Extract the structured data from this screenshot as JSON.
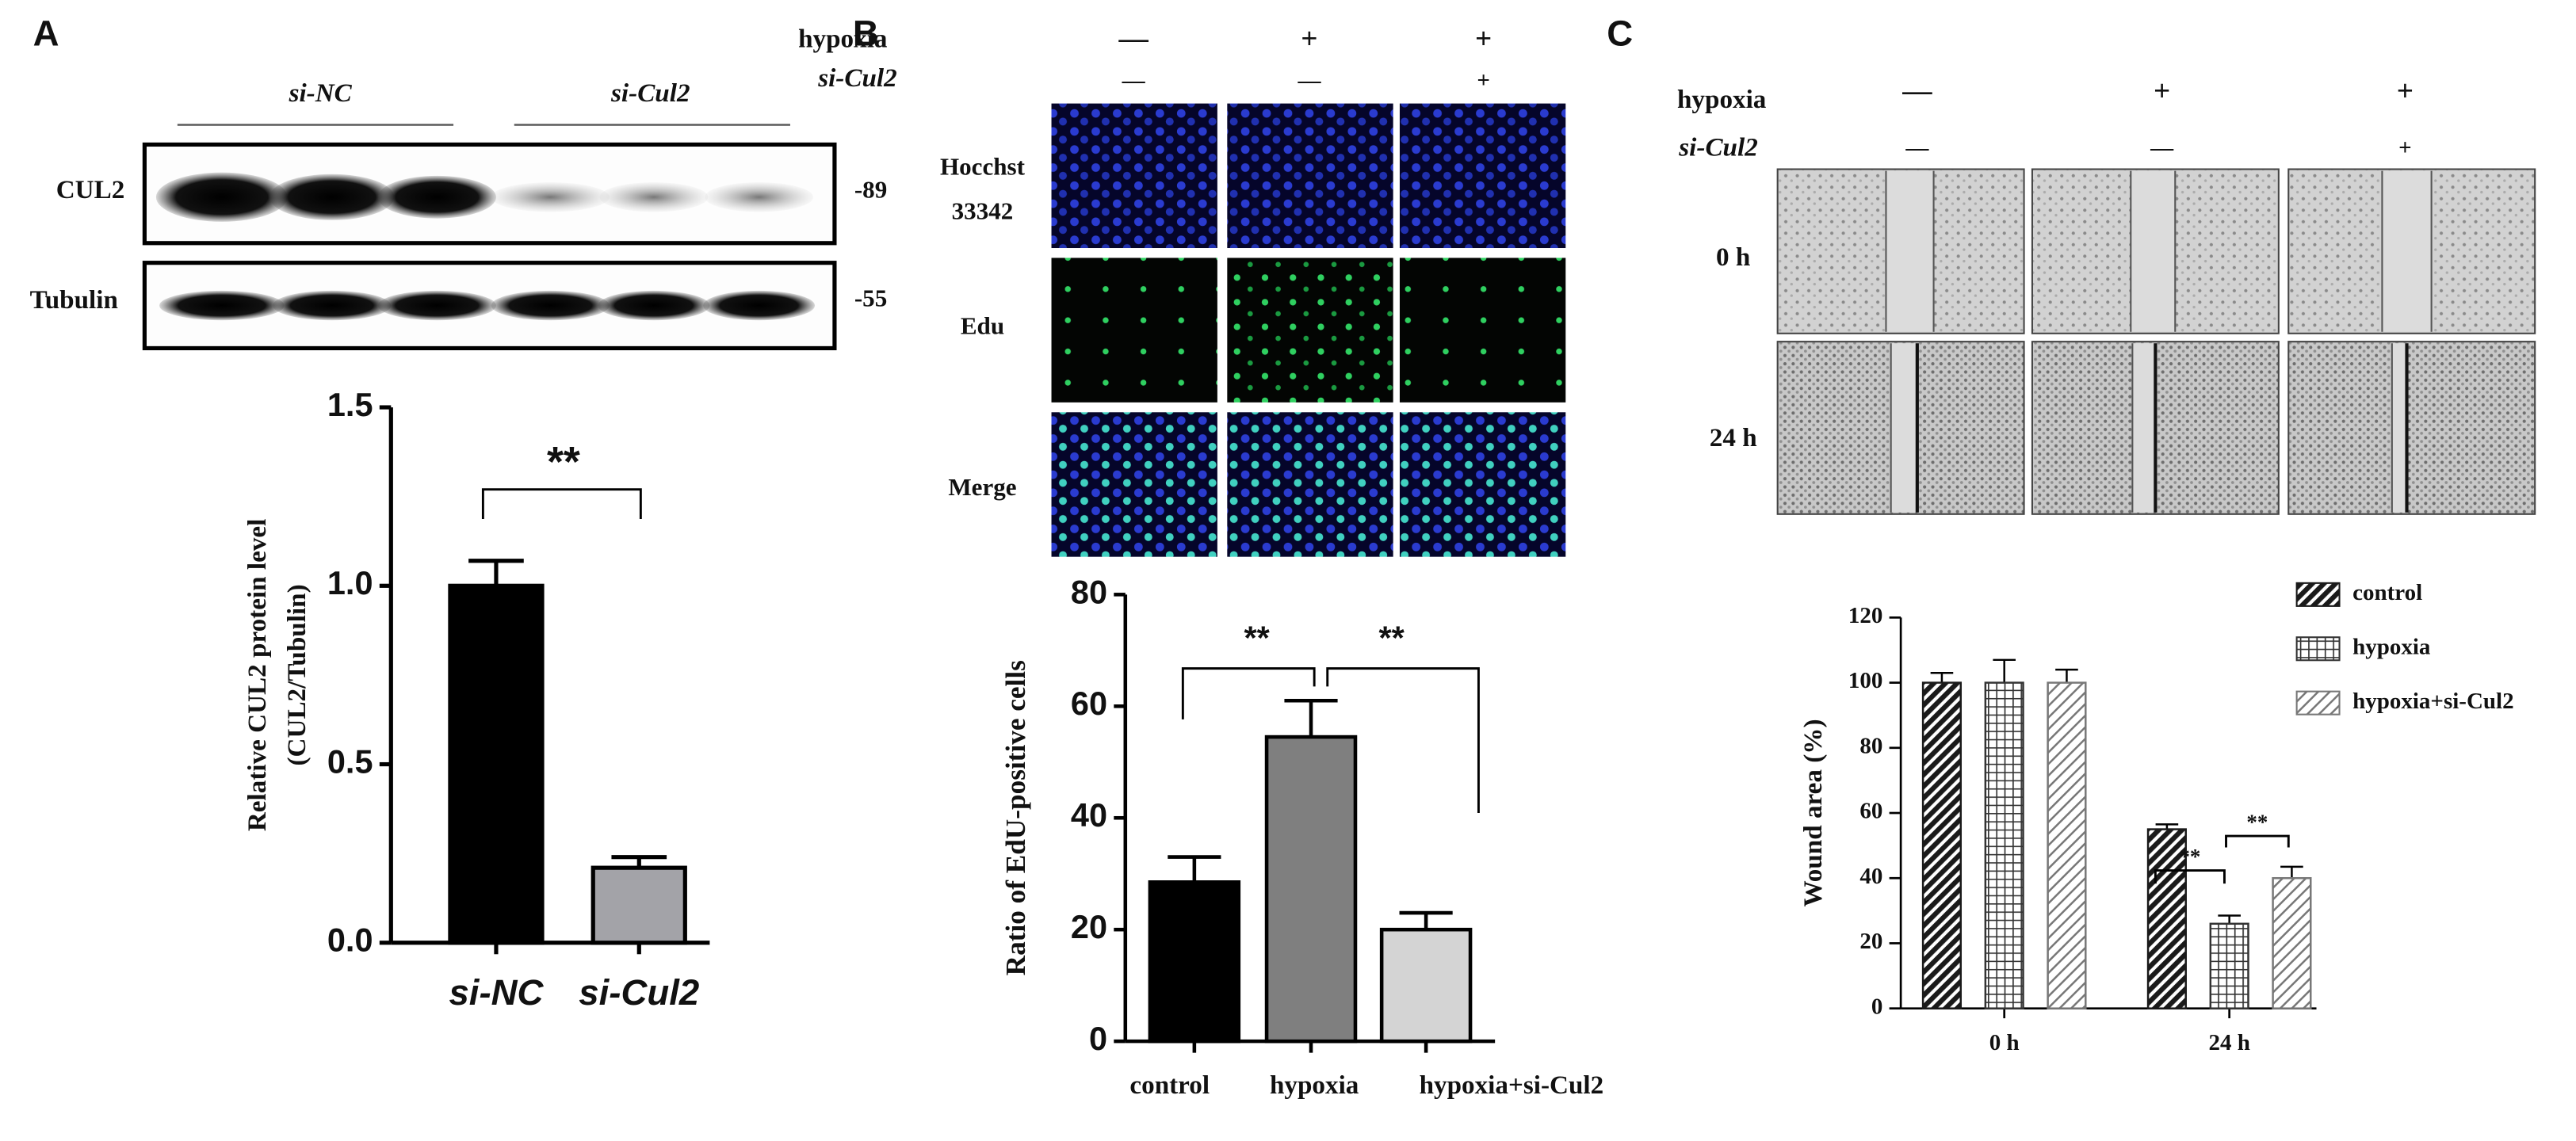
{
  "panel_labels": [
    "A",
    "B",
    "C"
  ],
  "blot": {
    "groups": [
      "si-NC",
      "si-Cul2"
    ],
    "rows": [
      "CUL2",
      "Tubulin"
    ],
    "markers": [
      "-89",
      "-55"
    ]
  },
  "edu_images": {
    "conditions": [
      {
        "name": "hypoxia",
        "signs": [
          "—",
          "+",
          "+"
        ]
      },
      {
        "name": "si-Cul2",
        "signs": [
          "—",
          "—",
          "+"
        ]
      }
    ],
    "rows": [
      [
        "Hocchst",
        "33342"
      ],
      [
        "Edu"
      ],
      [
        "Merge"
      ]
    ]
  },
  "wound_images": {
    "conditions": [
      {
        "name": "hypoxia",
        "signs": [
          "—",
          "+",
          "+"
        ]
      },
      {
        "name": "si-Cul2",
        "signs": [
          "—",
          "—",
          "+"
        ]
      }
    ],
    "rows": [
      "0 h",
      "24 h"
    ]
  },
  "chart_data": [
    {
      "type": "bar",
      "categories": [
        "si-NC",
        "si-Cul2"
      ],
      "values": [
        1.0,
        0.21
      ],
      "errors": [
        0.07,
        0.03
      ],
      "colors": [
        "#000000",
        "#a3a3a8"
      ],
      "ylim": [
        0,
        1.5
      ],
      "yticks": [
        {
          "value": 0,
          "label": "0.0"
        },
        0.5,
        {
          "value": 1,
          "label": "1.0"
        },
        1.5
      ],
      "ylabel": [
        "Relative CUL2 protein level",
        "(CUL2/Tubulin)"
      ],
      "annotations": [
        "**"
      ]
    },
    {
      "type": "bar",
      "categories": [
        "control",
        "hypoxia",
        "hypoxia+si-Cul2"
      ],
      "values": [
        28.5,
        54.5,
        20
      ],
      "errors": [
        4.5,
        6.5,
        3
      ],
      "colors": [
        "#000000",
        "#7f7f7f",
        "#d4d4d4"
      ],
      "ylim": [
        0,
        80
      ],
      "yticks": [
        0,
        20,
        40,
        60,
        80
      ],
      "ylabel": [
        "Ratio of EdU-positive cells"
      ],
      "annotations": [
        "**",
        "**"
      ]
    },
    {
      "type": "grouped_bar",
      "categories": [
        "0 h",
        "24 h"
      ],
      "series": [
        {
          "name": "control",
          "color": "#1a1a1a",
          "pattern": "diagonal-dense",
          "values": [
            100,
            55
          ],
          "errors": [
            3,
            1.5
          ]
        },
        {
          "name": "hypoxia",
          "color": "#333333",
          "pattern": "grid",
          "values": [
            100,
            26
          ],
          "errors": [
            7,
            2.5
          ]
        },
        {
          "name": "hypoxia+si-Cul2",
          "color": "#777777",
          "pattern": "diagonal-light",
          "values": [
            100,
            40
          ],
          "errors": [
            4,
            3.5
          ]
        }
      ],
      "ylim": [
        0,
        120
      ],
      "yticks": [
        0,
        20,
        40,
        60,
        80,
        100,
        120
      ],
      "ylabel": [
        "Wound area (%)"
      ],
      "legend": "top-right",
      "annotations": [
        "**",
        "**"
      ]
    }
  ]
}
